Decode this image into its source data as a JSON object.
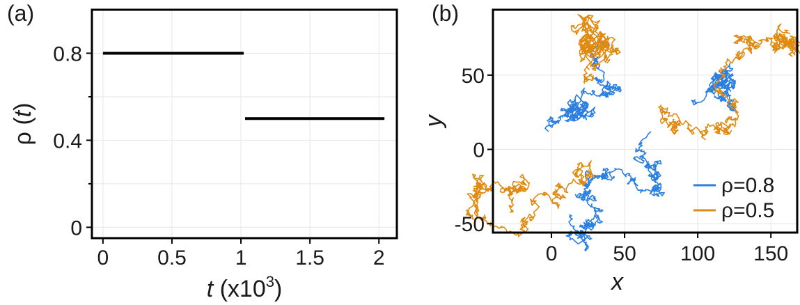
{
  "panels": {
    "a": {
      "label": "(a)"
    },
    "b": {
      "label": "(b)"
    }
  },
  "chart_data": [
    {
      "type": "line",
      "panel": "(a)",
      "xlabel_italic": "t",
      "xlabel_rest": " (x10",
      "xlabel_exp": "3",
      "xlabel_close": ")",
      "ylabel_pre": "ρ (",
      "ylabel_italic": "t",
      "ylabel_close": ")",
      "xlim": [
        -0.08,
        2.13
      ],
      "ylim": [
        -0.05,
        1.0
      ],
      "xticks": [
        0,
        0.5,
        1,
        1.5,
        2
      ],
      "xtick_labels": [
        "0",
        "0.5",
        "1",
        "1.5",
        "2"
      ],
      "yticks": [
        0,
        0.4,
        0.8
      ],
      "ytick_labels": [
        "0",
        "0.4",
        "0.8"
      ],
      "y_minor_ticks": [
        0.2,
        0.6
      ],
      "grid": true,
      "line_color": "#000000",
      "series": [
        {
          "segments": [
            {
              "x": [
                0,
                1.02
              ],
              "y": [
                0.8,
                0.8
              ]
            },
            {
              "x": [
                1.03,
                2.04
              ],
              "y": [
                0.5,
                0.5
              ]
            }
          ]
        }
      ]
    },
    {
      "type": "line",
      "panel": "(b)",
      "xlabel": "x",
      "ylabel": "y",
      "xlim": [
        -40,
        168
      ],
      "ylim": [
        -56,
        94
      ],
      "xticks": [
        0,
        50,
        100,
        150
      ],
      "xtick_labels": [
        "0",
        "50",
        "100",
        "150"
      ],
      "yticks": [
        -50,
        0,
        50
      ],
      "ytick_labels": [
        "-50",
        "0",
        "50"
      ],
      "grid": true,
      "legend_position": "bottom-right",
      "series": [
        {
          "label": "ρ=0.8",
          "color": "#2a7fe0"
        },
        {
          "label": "ρ=0.5",
          "color": "#e08a12"
        }
      ],
      "trajectories": [
        {
          "series": 0,
          "seed": 11,
          "start": [
            -2,
            12
          ],
          "end": [
            40,
            70
          ],
          "steps": 520,
          "noise": 2.4
        },
        {
          "series": 0,
          "seed": 23,
          "start": [
            12,
            -44
          ],
          "end": [
            68,
            12
          ],
          "steps": 560,
          "noise": 2.4
        },
        {
          "series": 0,
          "seed": 37,
          "start": [
            98,
            32
          ],
          "end": [
            120,
            32
          ],
          "steps": 420,
          "noise": 2.4
        },
        {
          "series": 1,
          "seed": 5,
          "start": [
            22,
            46
          ],
          "end": [
            38,
            58
          ],
          "steps": 560,
          "noise": 2.7
        },
        {
          "series": 1,
          "seed": 41,
          "start": [
            -26,
            -42
          ],
          "end": [
            22,
            -12
          ],
          "steps": 520,
          "noise": 2.6
        },
        {
          "series": 1,
          "seed": 59,
          "start": [
            84,
            20
          ],
          "end": [
            162,
            80
          ],
          "steps": 620,
          "noise": 2.6
        }
      ]
    }
  ]
}
